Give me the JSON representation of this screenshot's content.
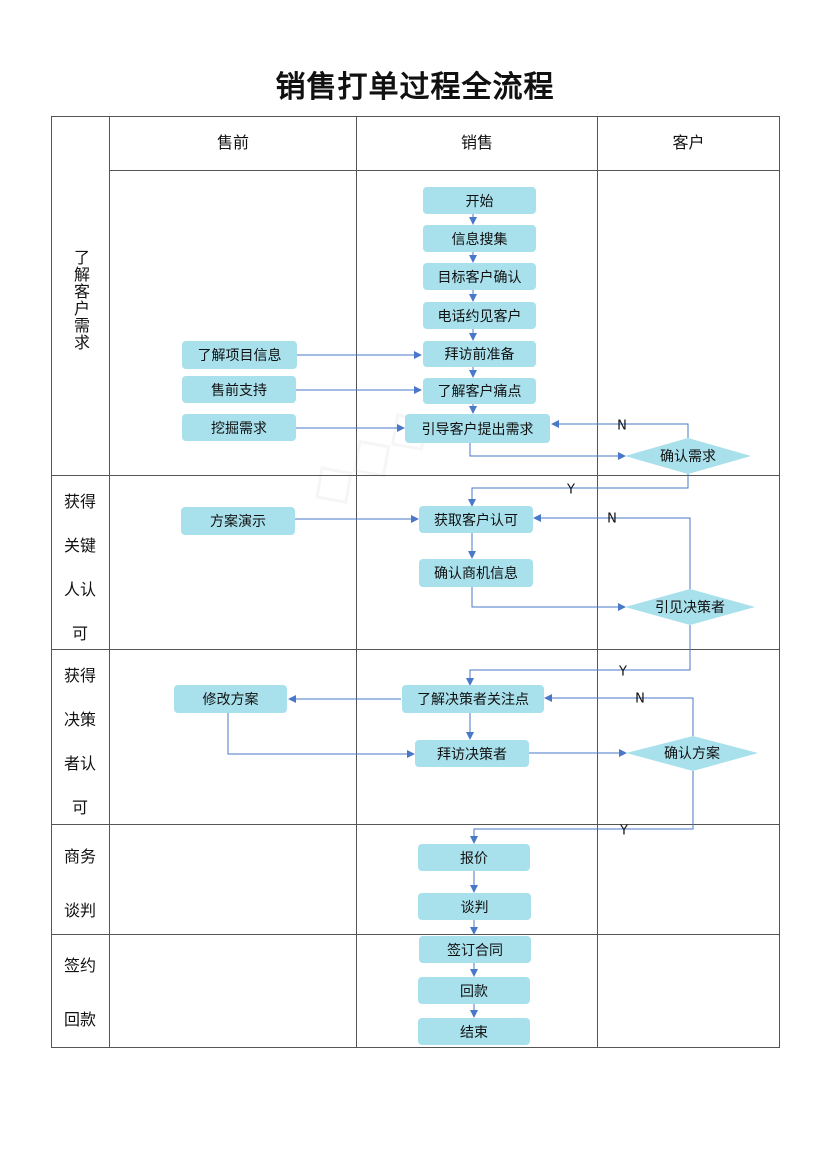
{
  "title": "销售打单过程全流程",
  "columns": [
    "售前",
    "销售",
    "客户"
  ],
  "stages": [
    {
      "label": "了解客户需求",
      "lines": [
        "了解客户需求"
      ]
    },
    {
      "label": "获得关键人认可",
      "lines": [
        "获得",
        "关键",
        "人认",
        "可"
      ]
    },
    {
      "label": "获得决策者认可",
      "lines": [
        "获得",
        "决策",
        "者认",
        "可"
      ]
    },
    {
      "label": "商务谈判",
      "lines": [
        "商务",
        "谈判"
      ]
    },
    {
      "label": "签约回款",
      "lines": [
        "签约",
        "回款"
      ]
    }
  ],
  "nodes": {
    "start": "开始",
    "info_collect": "信息搜集",
    "target_confirm": "目标客户确认",
    "phone_appt": "电话约见客户",
    "visit_prep": "拜访前准备",
    "pain_points": "了解客户痛点",
    "guide_needs": "引导客户提出需求",
    "project_info": "了解项目信息",
    "presales_support": "售前支持",
    "dig_needs": "挖掘需求",
    "confirm_needs": "确认需求",
    "solution_demo": "方案演示",
    "get_approval": "获取客户认可",
    "confirm_opp": "确认商机信息",
    "meet_decider": "引见决策者",
    "decider_focus": "了解决策者关注点",
    "modify_plan": "修改方案",
    "visit_decider": "拜访决策者",
    "confirm_plan": "确认方案",
    "quote": "报价",
    "negotiate": "谈判",
    "sign_contract": "签订合同",
    "payment": "回款",
    "end": "结束"
  },
  "branch": {
    "yes": "Y",
    "no": "N"
  },
  "colors": {
    "node": "#a8e0ec",
    "arrow": "#4a78c8",
    "grid": "#555555"
  }
}
